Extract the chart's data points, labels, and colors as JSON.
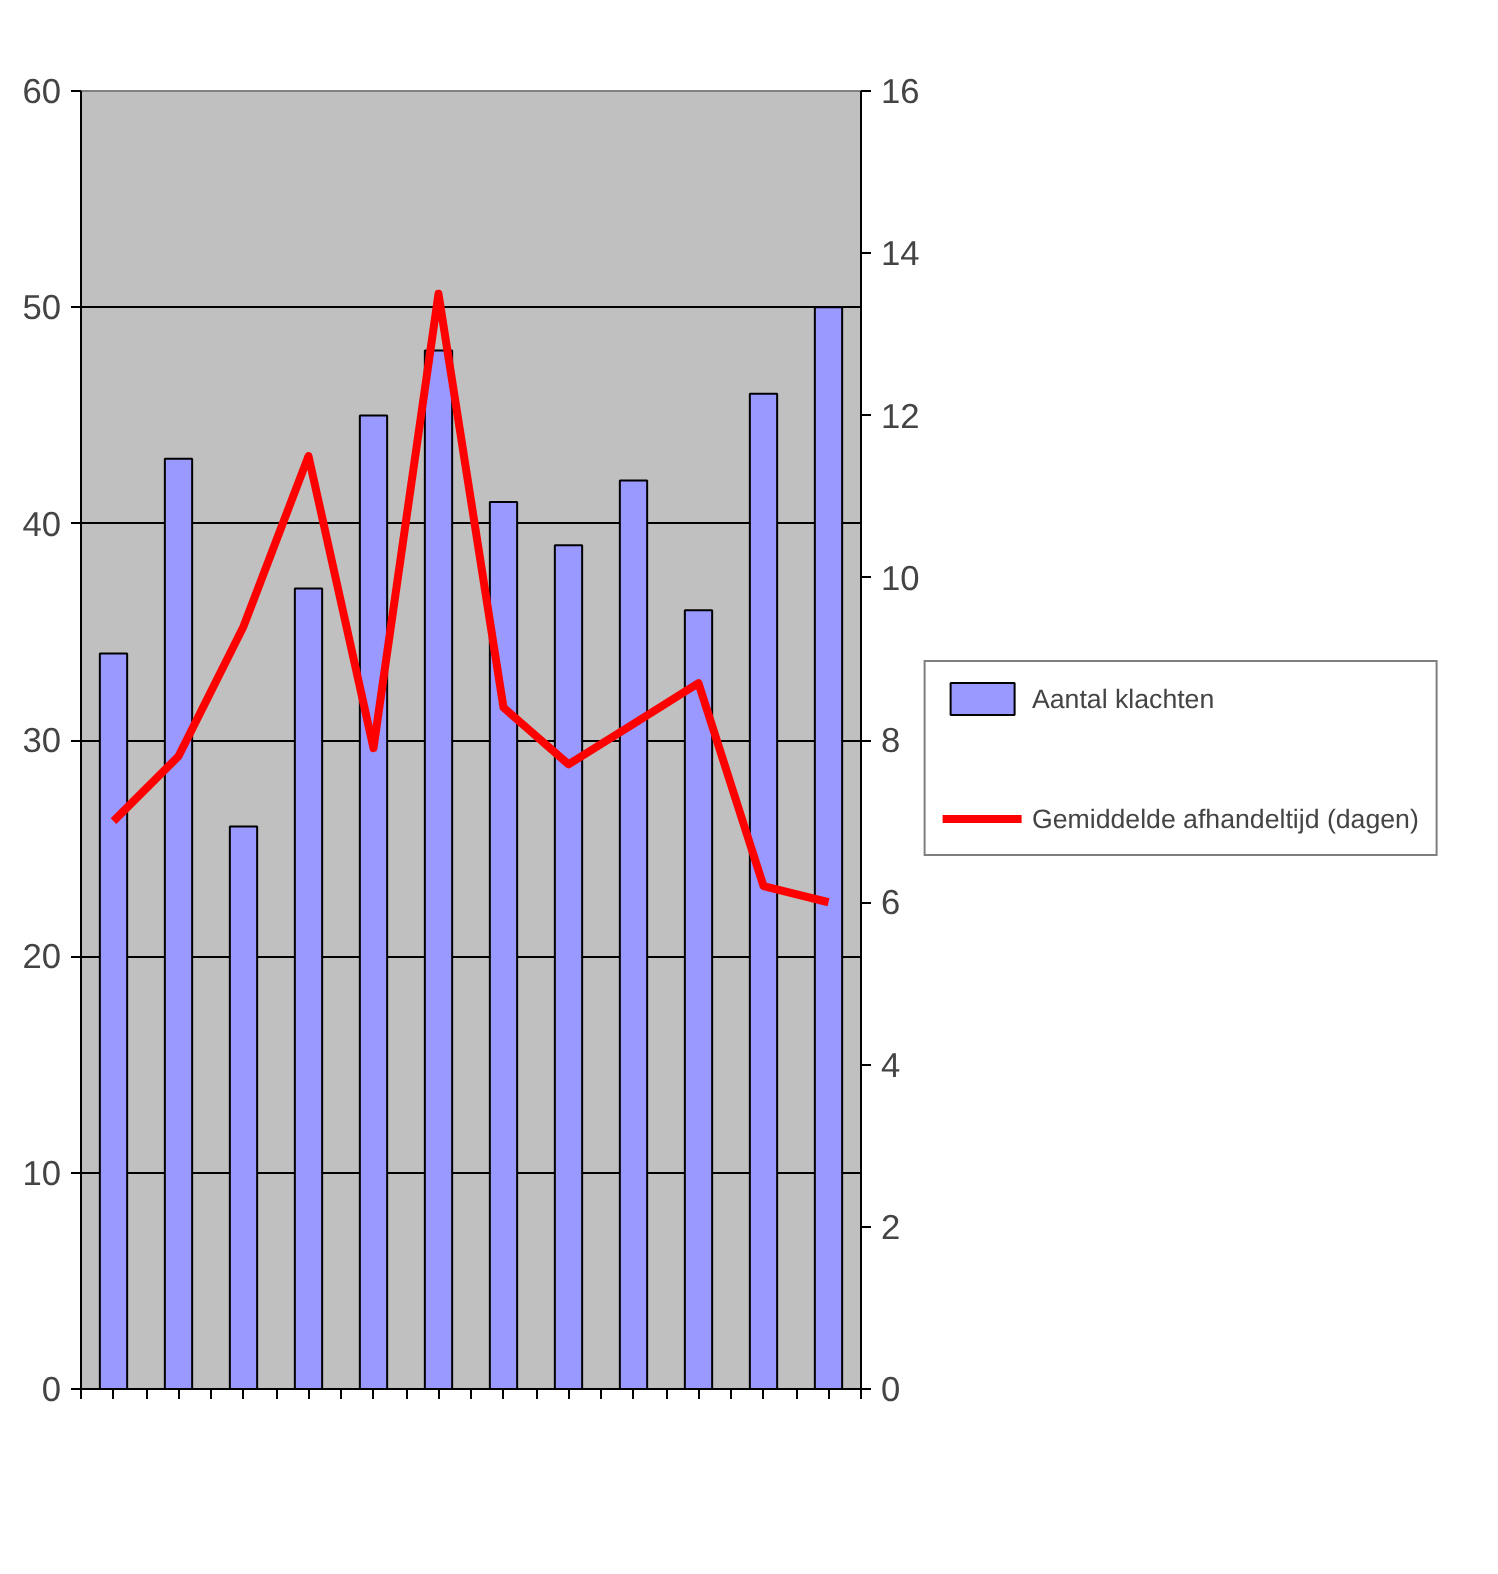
{
  "chart_data": {
    "type": "bar",
    "categories": [
      null,
      null,
      null,
      null,
      null,
      null,
      null,
      null,
      null,
      null,
      null,
      null
    ],
    "series": [
      {
        "name": "Aantal klachten",
        "color": "#9999ff",
        "values": [
          34,
          43,
          26,
          37,
          45,
          48,
          41,
          39,
          42,
          36,
          46,
          50
        ]
      },
      {
        "name": "Gemiddelde afhandeltijd (dagen)",
        "type": "line",
        "axis": "y2",
        "color": "#ff0000",
        "values": [
          7.0,
          7.8,
          9.4,
          11.5,
          7.9,
          13.5,
          8.4,
          7.7,
          8.2,
          8.7,
          6.2,
          6.0
        ]
      }
    ],
    "ylim": [
      0,
      60
    ],
    "yticks": [
      0,
      10,
      20,
      30,
      40,
      50,
      60
    ],
    "y2lim": [
      0,
      16
    ],
    "y2ticks": [
      0,
      2,
      4,
      6,
      8,
      10,
      12,
      14,
      16
    ],
    "grid": "y",
    "legend": "right",
    "marker": "none",
    "line_style": "solid"
  }
}
